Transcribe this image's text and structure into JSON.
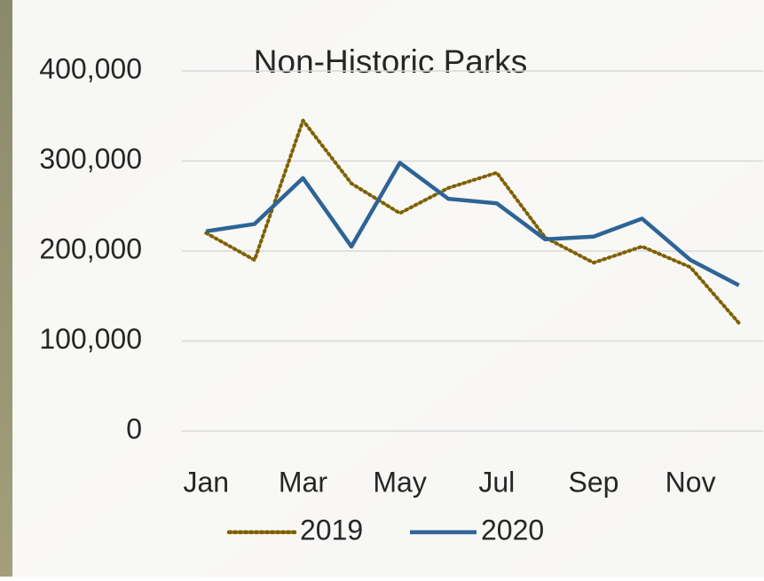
{
  "chart_data": {
    "type": "line",
    "title": "Non-Historic Parks",
    "categories": [
      "Jan",
      null,
      "Mar",
      null,
      "May",
      null,
      "Jul",
      null,
      "Sep",
      null,
      "Nov",
      null
    ],
    "series": [
      {
        "name": "2019",
        "color": "#7f6000",
        "style": "dotted",
        "values": [
          220000,
          190000,
          345000,
          275000,
          242000,
          270000,
          287000,
          215000,
          187000,
          205000,
          182000,
          120000
        ]
      },
      {
        "name": "2020",
        "color": "#2e6496",
        "style": "solid",
        "values": [
          222000,
          230000,
          281000,
          205000,
          298000,
          258000,
          253000,
          213000,
          216000,
          236000,
          190000,
          162000
        ]
      }
    ],
    "ylim": [
      0,
      400000
    ],
    "yticks": [
      0,
      {
        "value": 100000,
        "label": "100,000"
      },
      {
        "value": 200000,
        "label": "200,000"
      },
      {
        "value": 300000,
        "label": "300,000"
      },
      {
        "value": 400000,
        "label": "400,000"
      }
    ],
    "grid": true,
    "legend": "bottom"
  }
}
